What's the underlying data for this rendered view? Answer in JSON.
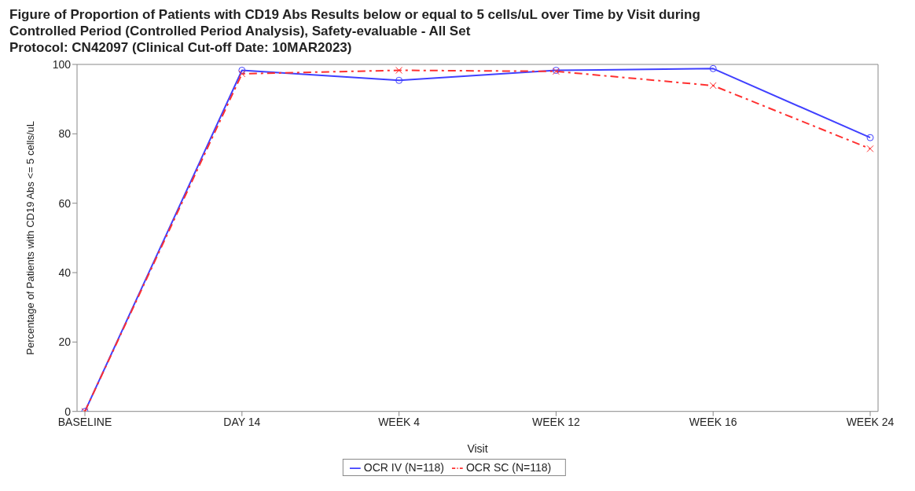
{
  "chart_data": {
    "type": "line",
    "title": "Figure of Proportion of Patients with CD19 Abs Results below or equal to 5 cells/uL over Time by Visit during Controlled Period (Controlled Period Analysis), Safety-evaluable - All Set",
    "subtitle": "Protocol: CN42097 (Clinical Cut-off Date: 10MAR2023)",
    "xlabel": "Visit",
    "ylabel": "Percentage of Patients with CD19 Abs <= 5 cells/uL",
    "categories": [
      "BASELINE",
      "DAY 14",
      "WEEK 4",
      "WEEK 12",
      "WEEK 16",
      "WEEK 24"
    ],
    "series": [
      {
        "name": "OCR IV (N=118)",
        "color": "#4040ff",
        "marker": "circle",
        "line_style": "solid",
        "values": [
          0,
          98.3,
          95.4,
          98.3,
          98.8,
          78.9
        ]
      },
      {
        "name": "OCR SC (N=118)",
        "color": "#ff3030",
        "marker": "cross",
        "line_style": "dashed",
        "values": [
          0,
          97.3,
          98.3,
          98.0,
          93.9,
          75.7
        ]
      }
    ],
    "ylim": [
      0,
      100
    ],
    "yticks": [
      0,
      20,
      40,
      60,
      80,
      100
    ],
    "grid": false,
    "legend": "bottom"
  }
}
